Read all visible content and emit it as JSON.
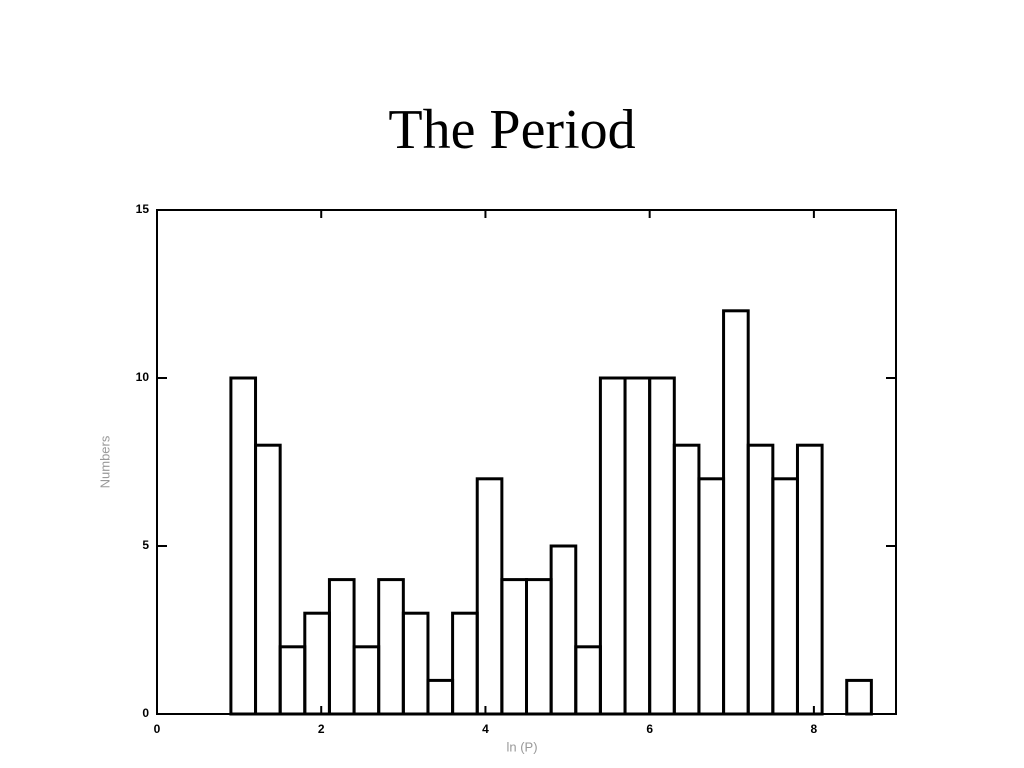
{
  "chart_data": {
    "type": "histogram",
    "title": "The Period",
    "x_label": "ln (P)",
    "y_label": "Numbers",
    "bins": [
      0.9,
      1.2,
      1.5,
      1.8,
      2.1,
      2.4,
      2.7,
      3.0,
      3.3,
      3.6,
      3.9,
      4.2,
      4.5,
      4.8,
      5.1,
      5.4,
      5.7,
      6.0,
      6.3,
      6.6,
      6.9,
      7.2,
      7.5,
      7.8,
      8.1,
      8.4,
      8.7
    ],
    "values": [
      10,
      8,
      2,
      3,
      4,
      2,
      4,
      3,
      1,
      3,
      7,
      4,
      4,
      5,
      2,
      10,
      10,
      10,
      8,
      7,
      12,
      8,
      7,
      8,
      0,
      1
    ],
    "color": "#000000",
    "xlim": [
      0,
      9
    ],
    "xticks": [
      0,
      2,
      4,
      6,
      8
    ],
    "ylim": [
      0,
      15
    ],
    "yticks": [
      0,
      5,
      10,
      15
    ]
  }
}
